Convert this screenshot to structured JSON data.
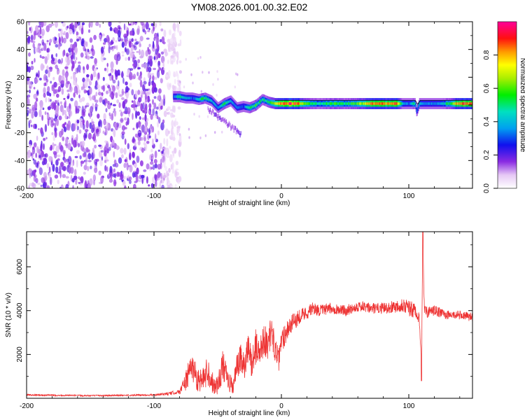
{
  "figure": {
    "title": "YM08.2026.001.00.32.E02"
  },
  "chart_data": [
    {
      "type": "heatmap",
      "name": "spectrogram",
      "title": "YM08.2026.001.00.32.E02",
      "xlabel": "Height of straight line (km)",
      "ylabel": "Frequency (Hz)",
      "xlim": [
        -200,
        150
      ],
      "ylim": [
        -60,
        60
      ],
      "xticks": [
        -200,
        -100,
        0,
        100
      ],
      "xtick_labels": [
        "-200",
        "-100",
        "0",
        "100"
      ],
      "yticks": [
        -60,
        -40,
        -20,
        0,
        20,
        40,
        60
      ],
      "ytick_labels": [
        "-60",
        "-40",
        "-20",
        "0",
        "20",
        "40",
        "60"
      ],
      "colorbar": {
        "label": "Normalized spectral amplitude",
        "range": [
          0,
          1
        ],
        "ticks": [
          0.0,
          0.2,
          0.4,
          0.6,
          0.8
        ],
        "tick_labels": [
          "0.0",
          "0.2",
          "0.4",
          "0.6",
          "0.8"
        ]
      },
      "noise_region_x": [
        -200,
        -85
      ],
      "ridge": {
        "x": [
          -85,
          -80,
          -75,
          -70,
          -65,
          -60,
          -55,
          -50,
          -45,
          -40,
          -35,
          -30,
          -25,
          -20,
          -15,
          -10,
          -5,
          0,
          10,
          20,
          30,
          40,
          50,
          60,
          70,
          80,
          90,
          95,
          100,
          105,
          106,
          108,
          110,
          120,
          130,
          140,
          150
        ],
        "frequency": [
          6,
          6,
          5,
          5,
          4,
          5,
          3,
          -2,
          1,
          3,
          -2,
          -1,
          -2,
          0,
          4,
          2,
          1,
          1,
          1,
          1,
          1,
          1,
          1,
          1,
          1,
          1,
          1,
          1,
          1,
          1,
          -5,
          1,
          1,
          1,
          1,
          1,
          1
        ],
        "amplitude": [
          0.3,
          0.5,
          0.4,
          0.3,
          0.5,
          0.5,
          0.4,
          0.35,
          0.5,
          0.4,
          0.3,
          0.3,
          0.5,
          0.55,
          0.45,
          0.5,
          0.7,
          0.85,
          0.9,
          0.55,
          0.45,
          0.55,
          0.5,
          0.6,
          0.85,
          0.8,
          0.85,
          0.4,
          0.3,
          0.55,
          0.25,
          0.55,
          0.35,
          0.35,
          0.5,
          0.85,
          0.85
        ]
      }
    },
    {
      "type": "line",
      "name": "snr",
      "xlabel": "Height of straight line (km)",
      "ylabel": "SNR (10 * v/v)",
      "xlim": [
        -200,
        150
      ],
      "ylim": [
        0,
        7600
      ],
      "xticks": [
        -200,
        -100,
        0,
        100
      ],
      "xtick_labels": [
        "-200",
        "-100",
        "0",
        "100"
      ],
      "yticks": [
        2000,
        4000,
        6000
      ],
      "ytick_labels": [
        "2000",
        "4000",
        "6000"
      ],
      "series": [
        {
          "name": "SNR",
          "color": "#ee3333",
          "x": [
            -200,
            -150,
            -100,
            -90,
            -80,
            -75,
            -70,
            -66,
            -62,
            -58,
            -54,
            -50,
            -46,
            -42,
            -38,
            -35,
            -32,
            -29,
            -26,
            -23,
            -20,
            -17,
            -14,
            -11,
            -8,
            -5,
            -2,
            0,
            5,
            10,
            15,
            20,
            25,
            30,
            40,
            50,
            60,
            70,
            80,
            90,
            95,
            100,
            103,
            106,
            108,
            110,
            111,
            112,
            115,
            120,
            130,
            140,
            150
          ],
          "y": [
            150,
            120,
            150,
            200,
            300,
            800,
            1500,
            900,
            800,
            1300,
            700,
            600,
            1500,
            800,
            500,
            1400,
            1800,
            1400,
            2200,
            1600,
            2400,
            2000,
            2800,
            2400,
            3100,
            2300,
            1700,
            2600,
            3200,
            3500,
            3800,
            3900,
            4100,
            4000,
            4100,
            4000,
            4200,
            4100,
            4100,
            4200,
            4300,
            4100,
            4000,
            4000,
            3700,
            1600,
            7600,
            4200,
            3900,
            4000,
            3800,
            3800,
            3700
          ],
          "noise_amplitude": [
            40,
            30,
            40,
            60,
            100,
            500,
            700,
            600,
            500,
            700,
            500,
            500,
            700,
            500,
            400,
            600,
            700,
            600,
            800,
            700,
            800,
            700,
            800,
            700,
            700,
            600,
            500,
            600,
            500,
            400,
            350,
            300,
            300,
            250,
            250,
            250,
            250,
            250,
            250,
            300,
            350,
            400,
            400,
            400,
            300,
            150,
            0,
            300,
            250,
            250,
            200,
            200,
            200
          ]
        }
      ]
    }
  ]
}
